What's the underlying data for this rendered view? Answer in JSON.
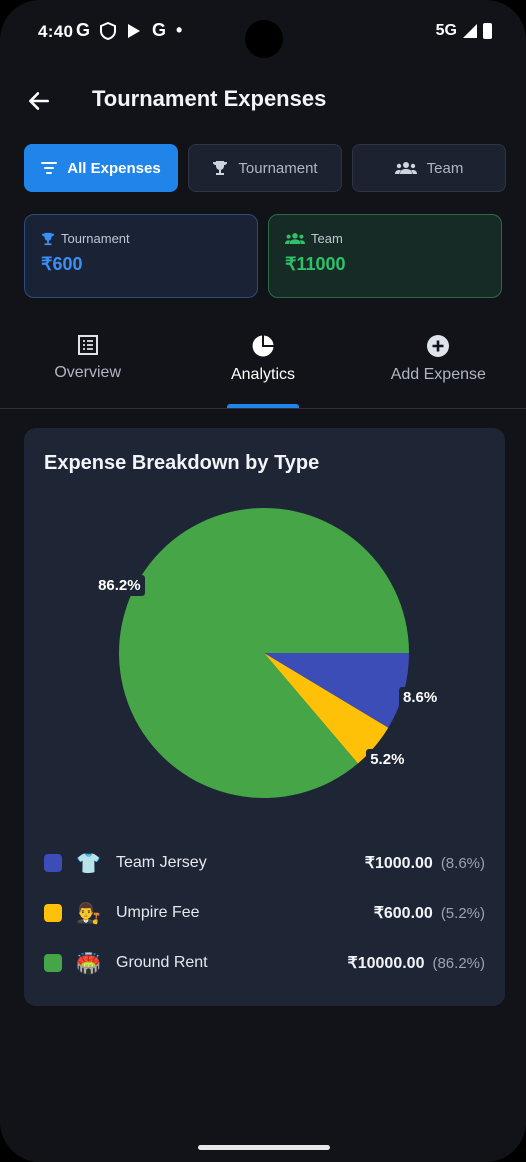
{
  "status_bar": {
    "time": "4:40",
    "left_icons": [
      "G",
      "shield-icon",
      "play-icon",
      "G",
      "•"
    ],
    "network": "5G"
  },
  "header": {
    "title": "Tournament Expenses"
  },
  "filters": [
    {
      "label": "All Expenses",
      "icon": "filter-icon",
      "active": true
    },
    {
      "label": "Tournament",
      "icon": "trophy-icon",
      "active": false
    },
    {
      "label": "Team",
      "icon": "group-icon",
      "active": false
    }
  ],
  "summary": {
    "tournament": {
      "label": "Tournament",
      "value": "₹600"
    },
    "team": {
      "label": "Team",
      "value": "₹11000"
    }
  },
  "tabs": [
    {
      "label": "Overview",
      "icon": "list-icon"
    },
    {
      "label": "Analytics",
      "icon": "pie-chart-icon"
    },
    {
      "label": "Add Expense",
      "icon": "plus-circle-icon"
    }
  ],
  "active_tab": "Analytics",
  "chart_data": {
    "type": "pie",
    "title": "Expense Breakdown by Type",
    "slices": [
      {
        "name": "Team Jersey",
        "value": 1000.0,
        "percent": 8.6,
        "label": "8.6%",
        "color": "#3d4db7"
      },
      {
        "name": "Umpire Fee",
        "value": 600.0,
        "percent": 5.2,
        "label": "5.2%",
        "color": "#ffc107"
      },
      {
        "name": "Ground Rent",
        "value": 10000.0,
        "percent": 86.2,
        "label": "86.2%",
        "color": "#46a546"
      }
    ]
  },
  "legend": [
    {
      "emoji": "👕",
      "name": "Team Jersey",
      "amount": "₹1000.00",
      "pct": "(8.6%)",
      "color": "#3d4db7"
    },
    {
      "emoji": "👨‍⚖️",
      "name": "Umpire Fee",
      "amount": "₹600.00",
      "pct": "(5.2%)",
      "color": "#ffc107"
    },
    {
      "emoji": "🏟️",
      "name": "Ground Rent",
      "amount": "₹10000.00",
      "pct": "(86.2%)",
      "color": "#46a546"
    }
  ]
}
